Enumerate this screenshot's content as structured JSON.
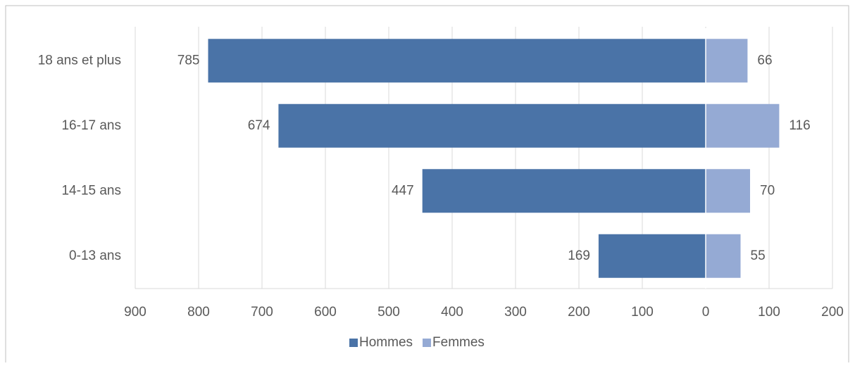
{
  "chart_data": {
    "type": "diverging-bar",
    "categories": [
      "18 ans et plus",
      "16-17 ans",
      "14-15 ans",
      "0-13 ans"
    ],
    "series": [
      {
        "name": "Hommes",
        "color": "#4a73a7",
        "values": [
          -785,
          -674,
          -447,
          -169
        ],
        "value_labels": [
          "785",
          "674",
          "447",
          "169"
        ]
      },
      {
        "name": "Femmes",
        "color": "#95aad4",
        "values": [
          66,
          116,
          70,
          55
        ]
      }
    ],
    "xlim": [
      -900,
      200
    ],
    "xticks": [
      {
        "value": -900,
        "label": "900"
      },
      {
        "value": -800,
        "label": "800"
      },
      {
        "value": -700,
        "label": "700"
      },
      {
        "value": -600,
        "label": "600"
      },
      {
        "value": -500,
        "label": "500"
      },
      {
        "value": -400,
        "label": "400"
      },
      {
        "value": -300,
        "label": "300"
      },
      {
        "value": -200,
        "label": "200"
      },
      {
        "value": -100,
        "label": "100"
      },
      0,
      100,
      200
    ],
    "grid": true,
    "legend": "bottom"
  }
}
